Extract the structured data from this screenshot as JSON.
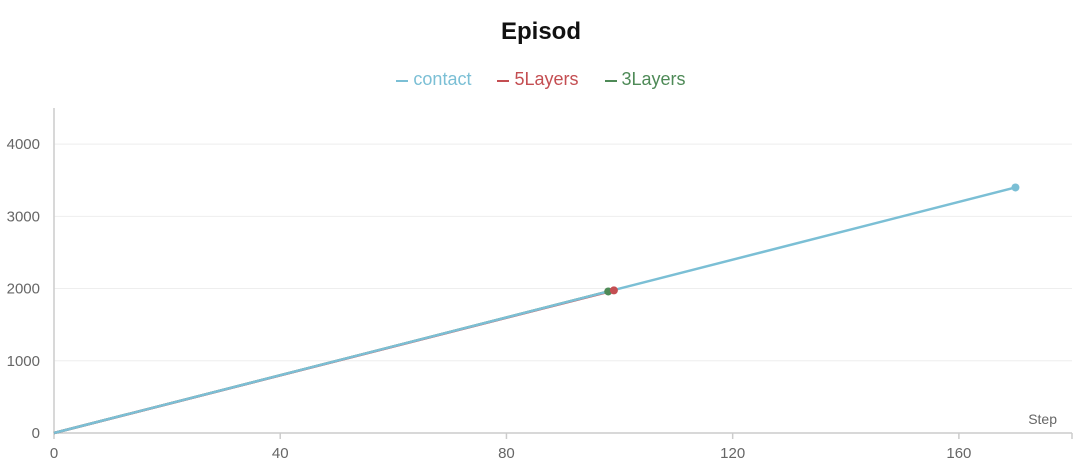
{
  "chart_data": {
    "type": "line",
    "title": "Episod",
    "xlabel": "Step",
    "ylabel": "",
    "xlim": [
      0,
      180
    ],
    "ylim": [
      0,
      4500
    ],
    "xticks": [
      0,
      40,
      80,
      120,
      160
    ],
    "yticks": [
      0,
      1000,
      2000,
      3000,
      4000
    ],
    "grid": true,
    "legend": "top-center",
    "series": [
      {
        "name": "contact",
        "color": "#7bbfd5",
        "x": [
          0,
          170
        ],
        "y": [
          0,
          3400
        ]
      },
      {
        "name": "5Layers",
        "color": "#c44e52",
        "x": [
          0,
          99
        ],
        "y": [
          0,
          1975
        ]
      },
      {
        "name": "3Layers",
        "color": "#4e8a57",
        "x": [
          0,
          98
        ],
        "y": [
          0,
          1960
        ]
      }
    ]
  }
}
